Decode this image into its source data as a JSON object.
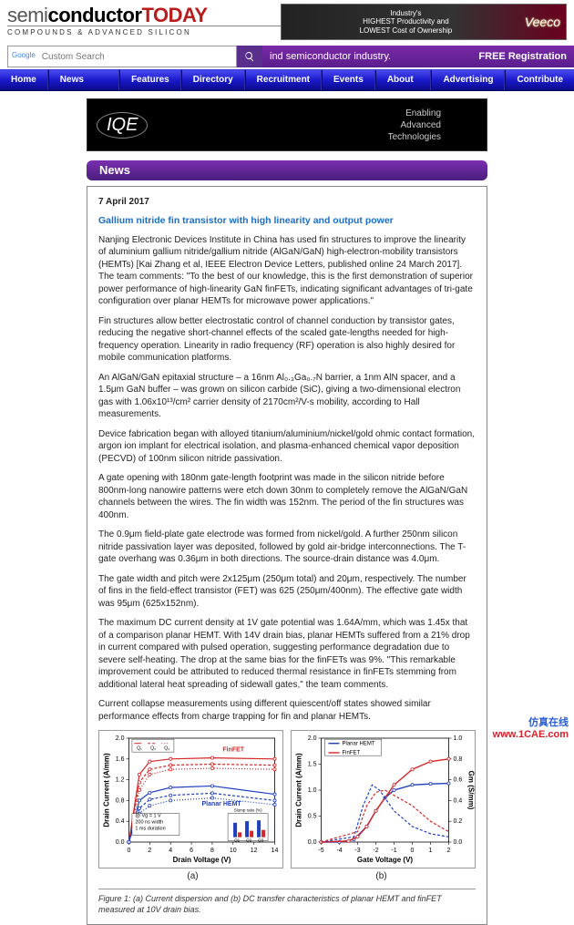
{
  "logo": {
    "word1": "semi",
    "word2": "conductor",
    "word3": "TODAY",
    "sub": "COMPOUNDS & ADVANCED SILICON"
  },
  "top_ad": {
    "line1": "Industry's",
    "line2": "HIGHEST Productivity and",
    "line3": "LOWEST Cost of Ownership",
    "brand": "Veeco"
  },
  "search": {
    "provider": "Google",
    "placeholder": "Custom Search"
  },
  "tagline": {
    "left": "ind semiconductor industry.",
    "right": "FREE Registration"
  },
  "nav": [
    "Home",
    "News Archive",
    "Features",
    "Directory",
    "Recruitment",
    "Events",
    "About Us",
    "Advertising",
    "Contribute"
  ],
  "mid_ad": {
    "brand": "IQE",
    "tag1": "Enabling",
    "tag2": "Advanced",
    "tag3": "Technologies"
  },
  "section_label": "News",
  "article": {
    "date": "7 April 2017",
    "title": "Gallium nitride fin transistor with high linearity and output power",
    "paras": [
      "Nanjing Electronic Devices Institute in China has used fin structures to improve the linearity of aluminium gallium nitride/gallium nitride (AlGaN/GaN) high-electron-mobility transistors (HEMTs) [Kai Zhang et al, IEEE Electron Device Letters, published online 24 March 2017]. The team comments: \"To the best of our knowledge, this is the first demonstration of superior power performance of high-linearity GaN finFETs, indicating significant advantages of tri-gate configuration over planar HEMTs for microwave power applications.\"",
      "Fin structures allow better electrostatic control of channel conduction by transistor gates, reducing the negative short-channel effects of the scaled gate-lengths needed for high-frequency operation. Linearity in radio frequency (RF) operation is also highly desired for mobile communication platforms.",
      "An AlGaN/GaN epitaxial structure – a 16nm Al₀.₃Ga₀.₇N barrier, a 1nm AlN spacer, and a 1.5μm GaN buffer – was grown on silicon carbide (SiC), giving a two-dimensional electron gas with 1.06x10¹³/cm² carrier density of 2170cm²/V-s mobility, according to Hall measurements.",
      "Device fabrication began with alloyed titanium/aluminium/nickel/gold ohmic contact formation, argon ion implant for electrical isolation, and plasma-enhanced chemical vapor deposition (PECVD) of 100nm silicon nitride passivation.",
      "A gate opening with 180nm gate-length footprint was made in the silicon nitride before 800nm-long nanowire patterns were etch down 30nm to completely remove the AlGaN/GaN channels between the wires. The fin width was 152nm. The period of the fin structures was 400nm.",
      "The 0.9μm field-plate gate electrode was formed from nickel/gold. A further 250nm silicon nitride passivation layer was deposited, followed by gold air-bridge interconnections. The T-gate overhang was 0.36μm in both directions. The source-drain distance was 4.0μm.",
      "The gate width and pitch were 2x125μm (250μm total) and 20μm, respectively. The number of fins in the field-effect transistor (FET) was 625 (250μm/400nm). The effective gate width was 95μm (625x152nm).",
      "The maximum DC current density at 1V gate potential was 1.64A/mm, which was 1.45x that of a comparison planar HEMT. With 14V drain bias, planar HEMTs suffered from a 21% drop in current compared with pulsed operation, suggesting performance degradation due to severe self-heating. The drop at the same bias for the finFETs was 9%. \"This remarkable improvement could be attributed to reduced thermal resistance in finFETs stemming from additional lateral heat spreading of sidewall gates,\" the team comments.",
      "Current collapse measurements using different quiescent/off states showed similar performance effects from charge trapping for fin and planar HEMTs."
    ]
  },
  "figure": {
    "chart_a": {
      "type": "line",
      "xlabel": "Drain Voltage (V)",
      "ylabel": "Drain Current (A/mm)",
      "xlim": [
        0,
        14
      ],
      "x_ticks": [
        0,
        2,
        4,
        6,
        8,
        10,
        12,
        14
      ],
      "ylim": [
        0.0,
        2.0
      ],
      "y_ticks": [
        0.0,
        0.4,
        0.8,
        1.2,
        1.6,
        2.0
      ],
      "legend": [
        "Q₁",
        "Q₂",
        "Q₃"
      ],
      "group_labels": {
        "finfet": "FinFET",
        "planar": "Planar HEMT"
      },
      "anno": "@ Vg = 1 V\n200 ns width\n1 ms duration",
      "slump_label": "Slump ratio (%)",
      "colors": {
        "finfet": "#d62728",
        "planar": "#1f3fbf",
        "grid": "#cccccc",
        "text": "#000000",
        "q1": "#d62728",
        "q2": "#1f3fbf",
        "q3": "#d62728"
      },
      "series": {
        "finfet_Q1": [
          [
            0,
            0
          ],
          [
            1,
            1.3
          ],
          [
            2,
            1.55
          ],
          [
            4,
            1.6
          ],
          [
            8,
            1.62
          ],
          [
            14,
            1.6
          ]
        ],
        "finfet_Q2": [
          [
            0,
            0
          ],
          [
            1,
            1.15
          ],
          [
            2,
            1.4
          ],
          [
            4,
            1.48
          ],
          [
            8,
            1.5
          ],
          [
            14,
            1.48
          ]
        ],
        "finfet_Q3": [
          [
            0,
            0
          ],
          [
            1,
            1.0
          ],
          [
            2,
            1.3
          ],
          [
            4,
            1.4
          ],
          [
            8,
            1.42
          ],
          [
            14,
            1.4
          ]
        ],
        "planar_Q1": [
          [
            0,
            0
          ],
          [
            1,
            0.8
          ],
          [
            2,
            0.95
          ],
          [
            4,
            1.05
          ],
          [
            8,
            1.08
          ],
          [
            14,
            0.92
          ]
        ],
        "planar_Q2": [
          [
            0,
            0
          ],
          [
            1,
            0.65
          ],
          [
            2,
            0.82
          ],
          [
            4,
            0.9
          ],
          [
            8,
            0.94
          ],
          [
            14,
            0.8
          ]
        ],
        "planar_Q3": [
          [
            0,
            0
          ],
          [
            1,
            0.55
          ],
          [
            2,
            0.7
          ],
          [
            4,
            0.8
          ],
          [
            8,
            0.85
          ],
          [
            14,
            0.72
          ]
        ]
      },
      "inset_bar": {
        "labels": [
          "Q1",
          "Q2",
          "Q3"
        ],
        "planar": [
          18,
          20,
          21
        ],
        "finfet": [
          6,
          8,
          9
        ],
        "ylim": [
          0,
          25
        ]
      }
    },
    "chart_b": {
      "type": "line",
      "xlabel": "Gate Voltage (V)",
      "ylabel": "Drain Current (A/mm)",
      "y2label": "Gm (S/mm)",
      "xlim": [
        -5,
        2
      ],
      "x_ticks": [
        -5,
        -4,
        -3,
        -2,
        -1,
        0,
        1,
        2
      ],
      "ylim": [
        0.0,
        2.0
      ],
      "y_ticks": [
        0.0,
        0.5,
        1.0,
        1.5,
        2.0
      ],
      "y2lim": [
        0.0,
        1.0
      ],
      "y2_ticks": [
        0.0,
        0.2,
        0.4,
        0.6,
        0.8,
        1.0
      ],
      "legend": [
        "Planar HEMT",
        "FinFET"
      ],
      "colors": {
        "planar": "#1f3fbf",
        "finfet": "#d62728",
        "grid": "#cccccc"
      },
      "series": {
        "planar_I": [
          [
            -5,
            0
          ],
          [
            -4,
            0
          ],
          [
            -3.2,
            0.05
          ],
          [
            -2.5,
            0.3
          ],
          [
            -2,
            0.6
          ],
          [
            -1.5,
            0.85
          ],
          [
            -1,
            1.0
          ],
          [
            0,
            1.1
          ],
          [
            1,
            1.12
          ],
          [
            2,
            1.13
          ]
        ],
        "finfet_I": [
          [
            -5,
            0
          ],
          [
            -3.5,
            0.02
          ],
          [
            -3,
            0.1
          ],
          [
            -2.5,
            0.3
          ],
          [
            -2,
            0.6
          ],
          [
            -1,
            1.1
          ],
          [
            0,
            1.4
          ],
          [
            1,
            1.55
          ],
          [
            2,
            1.6
          ]
        ],
        "planar_Gm": [
          [
            -5,
            0
          ],
          [
            -3.2,
            0.05
          ],
          [
            -2.7,
            0.35
          ],
          [
            -2.2,
            0.55
          ],
          [
            -1.8,
            0.5
          ],
          [
            -1,
            0.3
          ],
          [
            0,
            0.15
          ],
          [
            1,
            0.08
          ],
          [
            2,
            0.05
          ]
        ],
        "finfet_Gm": [
          [
            -5,
            0
          ],
          [
            -3,
            0.1
          ],
          [
            -2.5,
            0.35
          ],
          [
            -2,
            0.48
          ],
          [
            -1.5,
            0.5
          ],
          [
            -1,
            0.45
          ],
          [
            0,
            0.35
          ],
          [
            1,
            0.2
          ],
          [
            2,
            0.1
          ]
        ]
      }
    },
    "sub_labels": [
      "(a)",
      "(b)"
    ],
    "caption": "Figure 1: (a) Current dispersion and (b) DC transfer characteristics of planar HEMT and finFET measured at 10V drain bias."
  },
  "watermark": {
    "l1": "仿真在线",
    "l2": "www.1CAE.com"
  },
  "style": {
    "accent_purple": "#5a1e8c",
    "nav_gradient_top": "#4a4af0",
    "nav_gradient_bot": "#0a0a88",
    "link_blue": "#1a6ec8"
  }
}
